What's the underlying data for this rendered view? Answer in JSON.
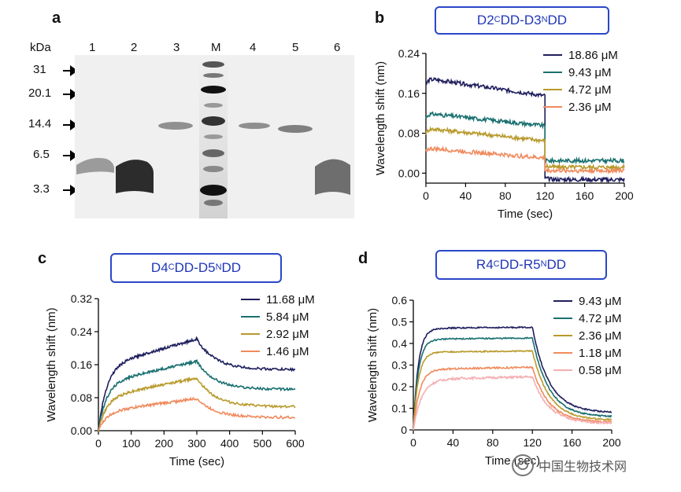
{
  "panel_labels": {
    "a": "a",
    "b": "b",
    "c": "c",
    "d": "d"
  },
  "gel": {
    "unit_label": "kDa",
    "marker_lane_label": "M",
    "lanes": [
      "1",
      "2",
      "3",
      "M",
      "4",
      "5",
      "6"
    ],
    "markers": [
      "31",
      "20.1",
      "14.4",
      "6.5",
      "3.3"
    ]
  },
  "watermark": {
    "text": "中国生物技术网"
  },
  "chart_data": [
    {
      "id": "b",
      "type": "line",
      "title_parts": {
        "left": "D2 ",
        "sup1": "C",
        "mid": "DD-D3 ",
        "sup2": "N",
        "right": "DD"
      },
      "xlabel": "Time (sec)",
      "ylabel": "Wavelength shift (nm)",
      "xlim": [
        0,
        200
      ],
      "ylim": [
        -0.02,
        0.24
      ],
      "xticks": [
        0,
        40,
        80,
        120,
        160,
        200
      ],
      "yticks": [
        0.0,
        0.08,
        0.16,
        0.24
      ],
      "ytick_labels": [
        "0.00",
        "0.08",
        "0.16",
        "0.24"
      ],
      "switch_x": 120,
      "grid": false,
      "legend_position": "top-right",
      "series": [
        {
          "name": "18.86 μM",
          "color": "#1f1f5e",
          "assoc": {
            "start": 0.175,
            "peak": 0.19,
            "end": 0.155,
            "k": 0.5
          },
          "dissoc": {
            "start": -0.01,
            "end": -0.013,
            "k": 0.2
          },
          "noise": 0.004
        },
        {
          "name": "9.43 μM",
          "color": "#1a7070",
          "assoc": {
            "start": 0.11,
            "peak": 0.12,
            "end": 0.095,
            "k": 0.5
          },
          "dissoc": {
            "start": 0.025,
            "end": 0.025,
            "k": 0.2
          },
          "noise": 0.004
        },
        {
          "name": "4.72 μM",
          "color": "#b89a2c",
          "assoc": {
            "start": 0.08,
            "peak": 0.09,
            "end": 0.065,
            "k": 0.5
          },
          "dissoc": {
            "start": 0.015,
            "end": 0.012,
            "k": 0.2
          },
          "noise": 0.004
        },
        {
          "name": "2.36 μM",
          "color": "#f08a5d",
          "assoc": {
            "start": 0.045,
            "peak": 0.05,
            "end": 0.03,
            "k": 0.5
          },
          "dissoc": {
            "start": 0.005,
            "end": 0.005,
            "k": 0.2
          },
          "noise": 0.004
        }
      ]
    },
    {
      "id": "c",
      "type": "line",
      "title_parts": {
        "left": "D4 ",
        "sup1": "C",
        "mid": "DD-D5 ",
        "sup2": "N",
        "right": "DD"
      },
      "xlabel": "Time (sec)",
      "ylabel": "Wavelength shift (nm)",
      "xlim": [
        0,
        600
      ],
      "ylim": [
        0,
        0.32
      ],
      "xticks": [
        0,
        100,
        200,
        300,
        400,
        500,
        600
      ],
      "yticks": [
        0.0,
        0.08,
        0.16,
        0.24,
        0.32
      ],
      "ytick_labels": [
        "0.00",
        "0.08",
        "0.16",
        "0.24",
        "0.32"
      ],
      "switch_x": 300,
      "grid": false,
      "legend_position": "top-right",
      "series": [
        {
          "name": "11.68 μM",
          "color": "#1f1f5e",
          "assoc": {
            "start": 0.0,
            "peak": 0.155,
            "end": 0.222,
            "k": 0.04
          },
          "dissoc": {
            "start": 0.222,
            "end": 0.148,
            "k": 0.018
          },
          "noise": 0.003
        },
        {
          "name": "5.84 μM",
          "color": "#1a7070",
          "assoc": {
            "start": 0.0,
            "peak": 0.115,
            "end": 0.168,
            "k": 0.04
          },
          "dissoc": {
            "start": 0.168,
            "end": 0.1,
            "k": 0.018
          },
          "noise": 0.003
        },
        {
          "name": "2.92 μM",
          "color": "#b89a2c",
          "assoc": {
            "start": 0.0,
            "peak": 0.08,
            "end": 0.128,
            "k": 0.04
          },
          "dissoc": {
            "start": 0.128,
            "end": 0.058,
            "k": 0.018
          },
          "noise": 0.003
        },
        {
          "name": "1.46 μM",
          "color": "#f08a5d",
          "assoc": {
            "start": 0.0,
            "peak": 0.045,
            "end": 0.078,
            "k": 0.04
          },
          "dissoc": {
            "start": 0.078,
            "end": 0.032,
            "k": 0.018
          },
          "noise": 0.003
        }
      ]
    },
    {
      "id": "d",
      "type": "line",
      "title_parts": {
        "left": "R4 ",
        "sup1": "C",
        "mid": "DD-R5 ",
        "sup2": "N",
        "right": "DD"
      },
      "xlabel": "Time (sec)",
      "ylabel": "Wavelength shift (nm)",
      "xlim": [
        0,
        200
      ],
      "ylim": [
        0,
        0.6
      ],
      "xticks": [
        0,
        40,
        80,
        120,
        160,
        200
      ],
      "yticks": [
        0.0,
        0.1,
        0.2,
        0.3,
        0.4,
        0.5,
        0.6
      ],
      "ytick_labels": [
        "0",
        "0.1",
        "0.2",
        "0.3",
        "0.4",
        "0.5",
        "0.6"
      ],
      "switch_x": 120,
      "grid": false,
      "legend_position": "top-right",
      "series": [
        {
          "name": "9.43 μM",
          "color": "#1f1f5e",
          "assoc": {
            "start": 0.0,
            "peak": 0.47,
            "end": 0.475,
            "k": 0.2
          },
          "dissoc": {
            "start": 0.475,
            "end": 0.08,
            "k": 0.06
          },
          "noise": 0.003
        },
        {
          "name": "4.72 μM",
          "color": "#1a7070",
          "assoc": {
            "start": 0.0,
            "peak": 0.42,
            "end": 0.425,
            "k": 0.2
          },
          "dissoc": {
            "start": 0.425,
            "end": 0.06,
            "k": 0.06
          },
          "noise": 0.003
        },
        {
          "name": "2.36 μM",
          "color": "#b89a2c",
          "assoc": {
            "start": 0.0,
            "peak": 0.36,
            "end": 0.365,
            "k": 0.2
          },
          "dissoc": {
            "start": 0.365,
            "end": 0.045,
            "k": 0.06
          },
          "noise": 0.003
        },
        {
          "name": "1.18 μM",
          "color": "#f08a5d",
          "assoc": {
            "start": 0.0,
            "peak": 0.28,
            "end": 0.29,
            "k": 0.16
          },
          "dissoc": {
            "start": 0.29,
            "end": 0.035,
            "k": 0.06
          },
          "noise": 0.004
        },
        {
          "name": "0.58 μM",
          "color": "#f4aeb0",
          "assoc": {
            "start": 0.0,
            "peak": 0.235,
            "end": 0.245,
            "k": 0.12
          },
          "dissoc": {
            "start": 0.245,
            "end": 0.03,
            "k": 0.06
          },
          "noise": 0.005
        }
      ]
    }
  ]
}
